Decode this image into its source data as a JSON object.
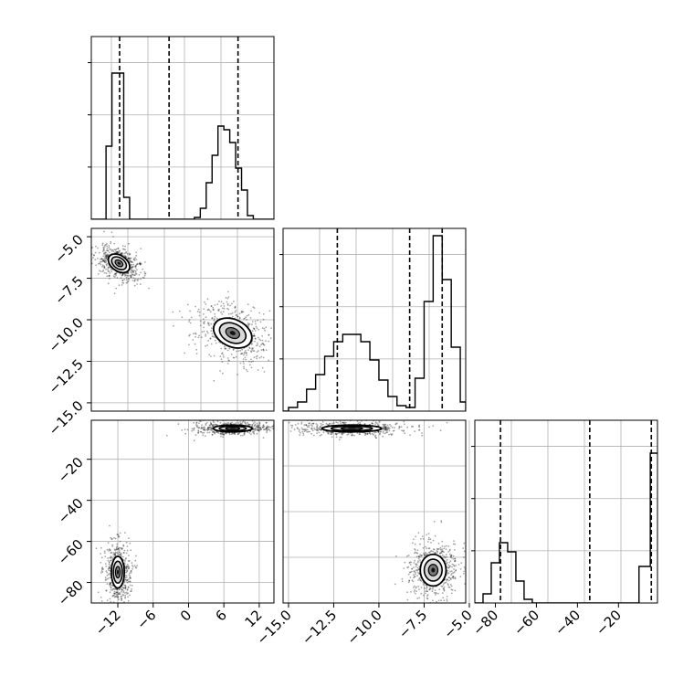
{
  "chart_data": [
    {
      "panel": "p1-hist",
      "type": "histogram",
      "xlim": [
        -16.5,
        14.5
      ],
      "ylim": [
        0,
        1.0
      ],
      "quantiles": [
        -11.7,
        -3.3,
        8.4
      ],
      "steps": [
        [
          -16.5,
          0
        ],
        [
          -15.0,
          0
        ],
        [
          -14.0,
          0.4
        ],
        [
          -13.0,
          0.8
        ],
        [
          -12.0,
          0.8
        ],
        [
          -11.0,
          0.12
        ],
        [
          -10.0,
          0
        ],
        [
          -1.5,
          0
        ],
        [
          1.0,
          0.01
        ],
        [
          2.0,
          0.06
        ],
        [
          3.0,
          0.2
        ],
        [
          4.0,
          0.35
        ],
        [
          5.0,
          0.51
        ],
        [
          6.0,
          0.49
        ],
        [
          7.0,
          0.42
        ],
        [
          8.0,
          0.28
        ],
        [
          9.0,
          0.16
        ],
        [
          10.0,
          0.02
        ],
        [
          11.0,
          0
        ],
        [
          14.5,
          0
        ]
      ],
      "xticks": [],
      "yticks": []
    },
    {
      "panel": "p2-hist",
      "type": "histogram",
      "xlim": [
        -15.3,
        -5.2
      ],
      "ylim": [
        0,
        1.0
      ],
      "quantiles": [
        -12.3,
        -8.3,
        -6.5
      ],
      "steps": [
        [
          -15.3,
          0
        ],
        [
          -15.0,
          0.02
        ],
        [
          -14.5,
          0.05
        ],
        [
          -14.0,
          0.12
        ],
        [
          -13.5,
          0.2
        ],
        [
          -13.0,
          0.3
        ],
        [
          -12.5,
          0.38
        ],
        [
          -12.0,
          0.42
        ],
        [
          -11.5,
          0.42
        ],
        [
          -11.0,
          0.38
        ],
        [
          -10.5,
          0.28
        ],
        [
          -10.0,
          0.17
        ],
        [
          -9.5,
          0.08
        ],
        [
          -9.0,
          0.03
        ],
        [
          -8.5,
          0.02
        ],
        [
          -8.0,
          0.18
        ],
        [
          -7.5,
          0.6
        ],
        [
          -7.0,
          0.96
        ],
        [
          -6.5,
          0.72
        ],
        [
          -6.0,
          0.35
        ],
        [
          -5.5,
          0.05
        ],
        [
          -5.2,
          0
        ]
      ],
      "xticks": [],
      "yticks": []
    },
    {
      "panel": "p3-hist",
      "type": "histogram",
      "xlim": [
        -90,
        -1
      ],
      "ylim": [
        0,
        1.0
      ],
      "quantiles": [
        -77.5,
        -34,
        -4
      ],
      "steps": [
        [
          -90,
          0
        ],
        [
          -86,
          0.05
        ],
        [
          -82,
          0.22
        ],
        [
          -78,
          0.33
        ],
        [
          -74,
          0.28
        ],
        [
          -70,
          0.12
        ],
        [
          -66,
          0.02
        ],
        [
          -62,
          0
        ],
        [
          -10,
          0.2
        ],
        [
          -4.5,
          0.82
        ],
        [
          -1,
          0.82
        ]
      ],
      "xticks": [
        -80,
        -60,
        -40,
        -20
      ],
      "xtick_labels": [
        "−80",
        "−60",
        "−40",
        "−20"
      ],
      "yticks": []
    },
    {
      "panel": "p-2d-y1-x0",
      "type": "contour-scatter",
      "xlim": [
        -16.5,
        14.5
      ],
      "ylim": [
        -15.5,
        -4.5
      ],
      "yticks": [
        -5.0,
        -7.5,
        -10.0,
        -12.5,
        -15.0
      ],
      "ytick_labels": [
        "−5.0",
        "−7.5",
        "−10.0",
        "−12.5",
        "−15.0"
      ],
      "xticks": [],
      "clusters": [
        {
          "cx": -11.8,
          "cy": -6.6,
          "rx": 2.4,
          "ry": 1.3,
          "angle": -55
        },
        {
          "cx": 7.5,
          "cy": -10.8,
          "rx": 4.2,
          "ry": 2.2,
          "angle": -65
        }
      ]
    },
    {
      "panel": "p-2d-y2-x0",
      "type": "contour-scatter",
      "xlim": [
        -16.5,
        14.5
      ],
      "ylim": [
        -90,
        -1
      ],
      "yticks": [
        -20,
        -40,
        -60,
        -80
      ],
      "ytick_labels": [
        "−20",
        "−40",
        "−60",
        "−80"
      ],
      "xticks": [
        -12,
        -6,
        0,
        6,
        12
      ],
      "xtick_labels": [
        "−12",
        "−6",
        "0",
        "6",
        "12"
      ],
      "clusters": [
        {
          "cx": -12.0,
          "cy": -75,
          "rx": 2.0,
          "ry": 14,
          "angle": 0
        },
        {
          "cx": 7.5,
          "cy": -5,
          "rx": 6.0,
          "ry": 3,
          "angle": 0
        }
      ]
    },
    {
      "panel": "p-2d-y2-x1",
      "type": "contour-scatter",
      "xlim": [
        -15.3,
        -5.2
      ],
      "ylim": [
        -90,
        -1
      ],
      "yticks": [],
      "xticks": [
        -15.0,
        -12.5,
        -10.0,
        -7.5,
        -5.0
      ],
      "xtick_labels": [
        "−15.0",
        "−12.5",
        "−10.0",
        "−7.5",
        "−5.0"
      ],
      "clusters": [
        {
          "cx": -7.0,
          "cy": -74,
          "rx": 1.3,
          "ry": 14,
          "angle": 0
        },
        {
          "cx": -11.5,
          "cy": -5,
          "rx": 3.0,
          "ry": 3,
          "angle": 0
        }
      ]
    }
  ]
}
